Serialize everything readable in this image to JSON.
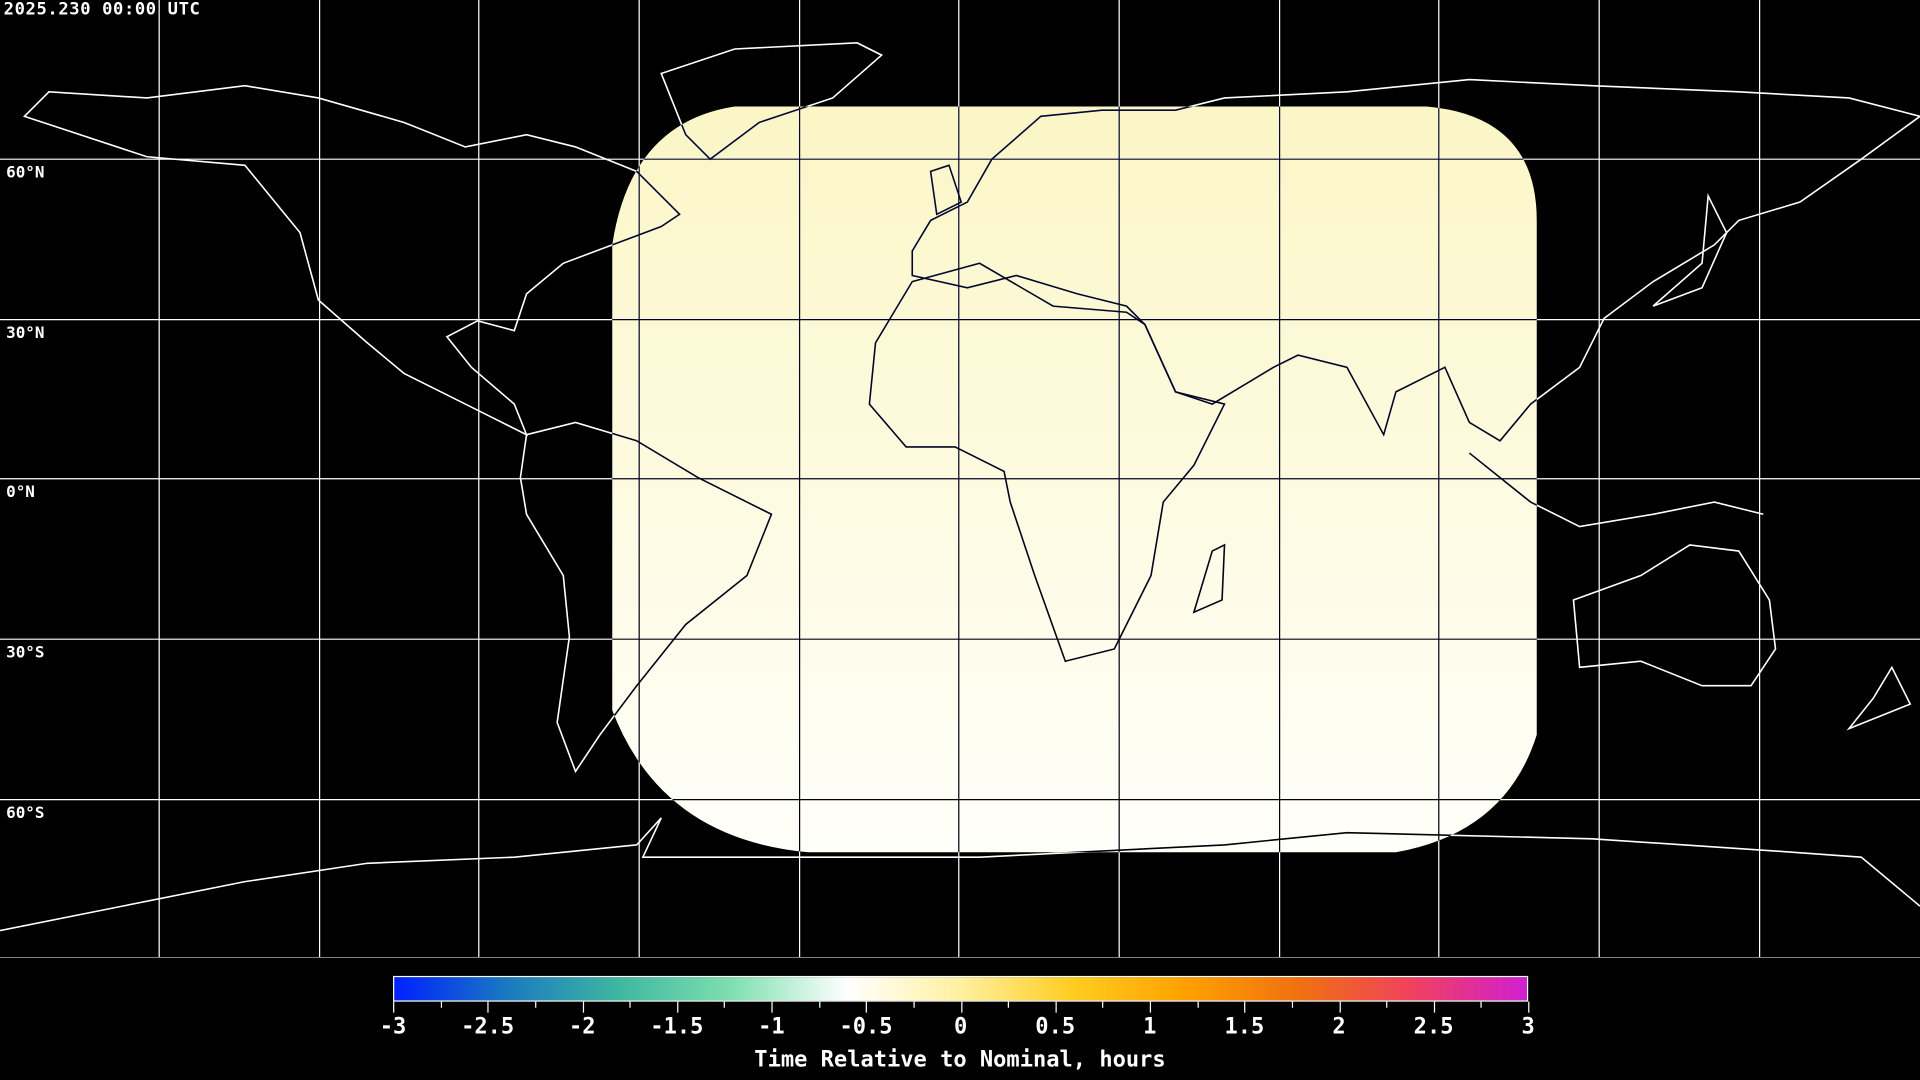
{
  "header": {
    "timestamp": "2025.230 00:00 UTC"
  },
  "map": {
    "projection": "equirectangular",
    "lat_labels": [
      "60°N",
      "30°N",
      "0°N",
      "30°S",
      "60°S"
    ],
    "background_color": "#000000",
    "coastline_color": "#ffffff",
    "coverage_color_top": "#fbf6c6",
    "coverage_color_bottom": "#fffffa"
  },
  "colorbar": {
    "label": "Time Relative to Nominal, hours",
    "min": -3,
    "max": 3,
    "tick_labels": [
      "-3",
      "-2.5",
      "-2",
      "-1.5",
      "-1",
      "-0.5",
      "0",
      "0.5",
      "1",
      "1.5",
      "2",
      "2.5",
      "3"
    ],
    "colors": [
      "#0020ff",
      "#1a7ac0",
      "#40b8a0",
      "#80e0b0",
      "#ffffff",
      "#fff0a0",
      "#ffcc20",
      "#ffa000",
      "#f07010",
      "#f04060",
      "#d020d0"
    ]
  }
}
